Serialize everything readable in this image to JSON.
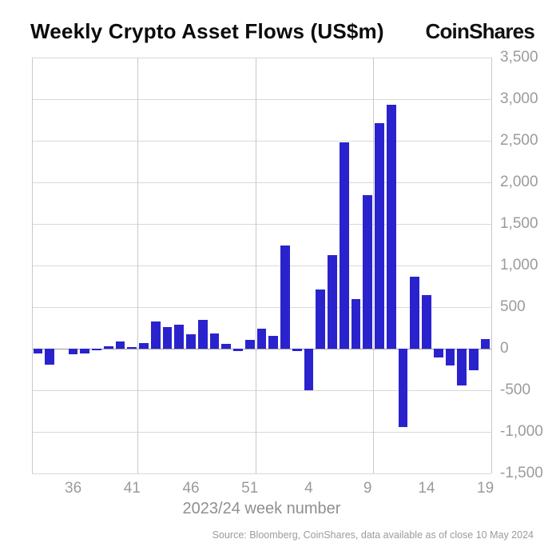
{
  "header": {
    "title": "Weekly Crypto Asset Flows (US$m)",
    "logo": "CoinShares"
  },
  "chart_data": {
    "type": "bar",
    "title": "Weekly Crypto Asset Flows (US$m)",
    "xlabel": "2023/24 week number",
    "ylabel": "",
    "ylim": [
      -1500,
      3500
    ],
    "ytick_step": 500,
    "grid": true,
    "bar_color": "#2a23cd",
    "categories": [
      "33",
      "34",
      "35",
      "36",
      "37",
      "38",
      "39",
      "40",
      "41",
      "42",
      "43",
      "44",
      "45",
      "46",
      "47",
      "48",
      "49",
      "50",
      "51",
      "52",
      "1",
      "2",
      "3",
      "4",
      "5",
      "6",
      "7",
      "8",
      "9",
      "10",
      "11",
      "12",
      "13",
      "14",
      "15",
      "16",
      "17",
      "18",
      "19"
    ],
    "values": [
      -55,
      -190,
      0,
      -65,
      -55,
      -15,
      30,
      90,
      15,
      70,
      330,
      260,
      290,
      175,
      345,
      185,
      55,
      -25,
      105,
      240,
      155,
      1240,
      -30,
      -495,
      710,
      1125,
      2480,
      595,
      1850,
      2710,
      2935,
      -945,
      870,
      640,
      -110,
      -200,
      -440,
      -255,
      120
    ],
    "x_tick_labels": [
      "36",
      "41",
      "46",
      "51",
      "4",
      "9",
      "14",
      "19"
    ],
    "vgrid_weeks": [
      "41",
      "51",
      "9",
      "19"
    ]
  },
  "footer": {
    "source": "Source: Bloomberg, CoinShares, data available as of close 10 May 2024"
  }
}
